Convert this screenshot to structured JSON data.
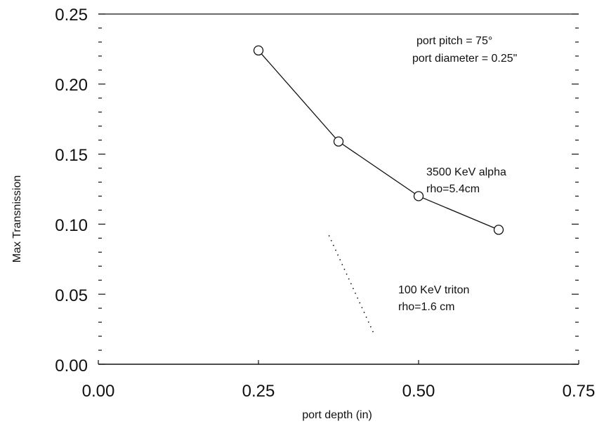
{
  "chart_data": {
    "type": "line",
    "title": "",
    "xlabel": "port depth (in)",
    "ylabel": "Max Transnission",
    "xlim": [
      0.0,
      0.75
    ],
    "ylim": [
      0.0,
      0.25
    ],
    "x_ticks": [
      "0.00",
      "0.25",
      "0.50",
      "0.75"
    ],
    "y_ticks": [
      "0.00",
      "0.05",
      "0.10",
      "0.15",
      "0.20",
      "0.25"
    ],
    "grid": false,
    "series": [
      {
        "name": "3500 KeV alpha rho=5.4cm",
        "style": "solid",
        "markers": "circle",
        "x": [
          0.25,
          0.375,
          0.5,
          0.625
        ],
        "y": [
          0.224,
          0.159,
          0.12,
          0.096
        ]
      },
      {
        "name": "100 KeV triton rho=1.6 cm",
        "style": "dotted",
        "markers": "none",
        "x": [
          0.36,
          0.43
        ],
        "y": [
          0.092,
          0.022
        ]
      }
    ],
    "annotations": {
      "params": [
        "port pitch = 75°",
        "port diameter = 0.25\""
      ],
      "alpha": [
        "3500 KeV alpha",
        "rho=5.4cm"
      ],
      "triton": [
        "100 KeV triton",
        "rho=1.6 cm"
      ]
    }
  }
}
